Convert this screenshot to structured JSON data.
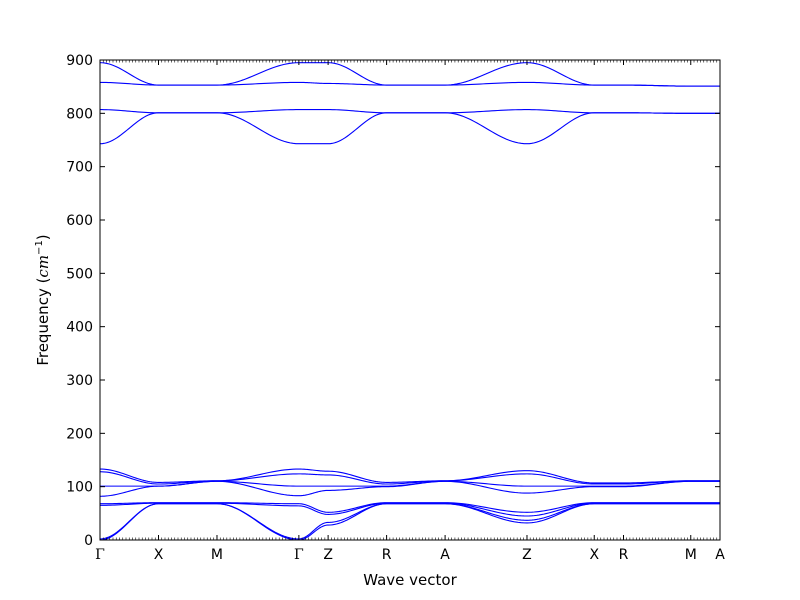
{
  "chart_data": {
    "type": "line",
    "xlabel": "Wave vector",
    "ylabel_text": "Frequency (",
    "ylabel_unit": "cm",
    "ylabel_exp": "−1",
    "ylabel_close": ")",
    "ylim": [
      0,
      900
    ],
    "yticks": [
      0,
      100,
      200,
      300,
      400,
      500,
      600,
      700,
      800,
      900
    ],
    "line_color": "#0000ff",
    "grid": false,
    "high_points": [
      {
        "label": "Γ",
        "x": 0
      },
      {
        "label": "X",
        "x": 1
      },
      {
        "label": "M",
        "x": 2
      },
      {
        "label": "Γ",
        "x": 3.4
      },
      {
        "label": "Z",
        "x": 3.9
      },
      {
        "label": "R",
        "x": 4.9
      },
      {
        "label": "A",
        "x": 5.9
      },
      {
        "label": "Z",
        "x": 7.3
      },
      {
        "label": "X",
        "x": 8.45
      },
      {
        "label": "R",
        "x": 8.95
      },
      {
        "label": "M",
        "x": 10.1
      },
      {
        "label": "A",
        "x": 10.6
      }
    ],
    "series": [
      {
        "x": [
          0,
          1,
          2,
          3.4,
          3.9,
          4.9,
          5.9,
          7.3,
          8.45,
          8.95,
          10.1,
          10.6
        ],
        "y": [
          895,
          853,
          853,
          895,
          895,
          853,
          853,
          895,
          853,
          853,
          851,
          851
        ]
      },
      {
        "x": [
          0,
          1,
          2,
          3.4,
          3.9,
          4.9,
          5.9,
          7.3,
          8.45,
          8.95,
          10.1,
          10.6
        ],
        "y": [
          858,
          853,
          853,
          858,
          856,
          853,
          853,
          858,
          853,
          853,
          851,
          851
        ]
      },
      {
        "x": [
          0,
          1,
          2,
          3.4,
          3.9,
          4.9,
          5.9,
          7.3,
          8.45,
          8.95,
          10.1,
          10.6
        ],
        "y": [
          807,
          801,
          801,
          807,
          807,
          801,
          801,
          807,
          801,
          801,
          800,
          800
        ]
      },
      {
        "x": [
          0,
          1,
          2,
          3.4,
          3.9,
          4.9,
          5.9,
          7.3,
          8.45,
          8.95,
          10.1,
          10.6
        ],
        "y": [
          743,
          801,
          801,
          743,
          743,
          801,
          801,
          743,
          801,
          801,
          800,
          800
        ]
      },
      {
        "x": [
          0,
          1,
          2,
          3.4,
          3.9,
          4.9,
          5.9,
          7.3,
          8.45,
          8.95,
          10.1,
          10.6
        ],
        "y": [
          133,
          108,
          111,
          133,
          129,
          108,
          111,
          130,
          107,
          107,
          111,
          111
        ]
      },
      {
        "x": [
          0,
          1,
          2,
          3.4,
          3.9,
          4.9,
          5.9,
          7.3,
          8.45,
          8.95,
          10.1,
          10.6
        ],
        "y": [
          128,
          105,
          111,
          124,
          122,
          105,
          111,
          124,
          105,
          105,
          111,
          111
        ]
      },
      {
        "x": [
          0,
          1,
          2,
          3.4,
          3.9,
          4.9,
          5.9,
          7.3,
          8.45,
          8.95,
          10.1,
          10.6
        ],
        "y": [
          101,
          101,
          110,
          101,
          101,
          101,
          110,
          101,
          101,
          101,
          110,
          110
        ]
      },
      {
        "x": [
          0,
          1,
          2,
          3.4,
          3.9,
          4.9,
          5.9,
          7.3,
          8.45,
          8.95,
          10.1,
          10.6
        ],
        "y": [
          82,
          101,
          110,
          83,
          93,
          100,
          110,
          88,
          100,
          100,
          110,
          110
        ]
      },
      {
        "x": [
          0,
          1,
          2,
          3.4,
          3.9,
          4.9,
          5.9,
          7.3,
          8.45,
          8.95,
          10.1,
          10.6
        ],
        "y": [
          68,
          70,
          70,
          68,
          52,
          70,
          70,
          52,
          70,
          70,
          70,
          70
        ]
      },
      {
        "x": [
          0,
          1,
          2,
          3.4,
          3.9,
          4.9,
          5.9,
          7.3,
          8.45,
          8.95,
          10.1,
          10.6
        ],
        "y": [
          65,
          69,
          69,
          64,
          48,
          69,
          69,
          45,
          69,
          69,
          69,
          69
        ]
      },
      {
        "x": [
          0,
          1,
          2,
          3.4,
          3.9,
          4.9,
          5.9,
          7.3,
          8.45,
          8.95,
          10.1,
          10.6
        ],
        "y": [
          2,
          68,
          68,
          2,
          33,
          68,
          68,
          37,
          68,
          68,
          68,
          68
        ]
      },
      {
        "x": [
          0,
          1,
          2,
          3.4,
          3.9,
          4.9,
          5.9,
          7.3,
          8.45,
          8.95,
          10.1,
          10.6
        ],
        "y": [
          0,
          68,
          68,
          0,
          28,
          68,
          68,
          32,
          68,
          68,
          68,
          68
        ]
      }
    ]
  }
}
